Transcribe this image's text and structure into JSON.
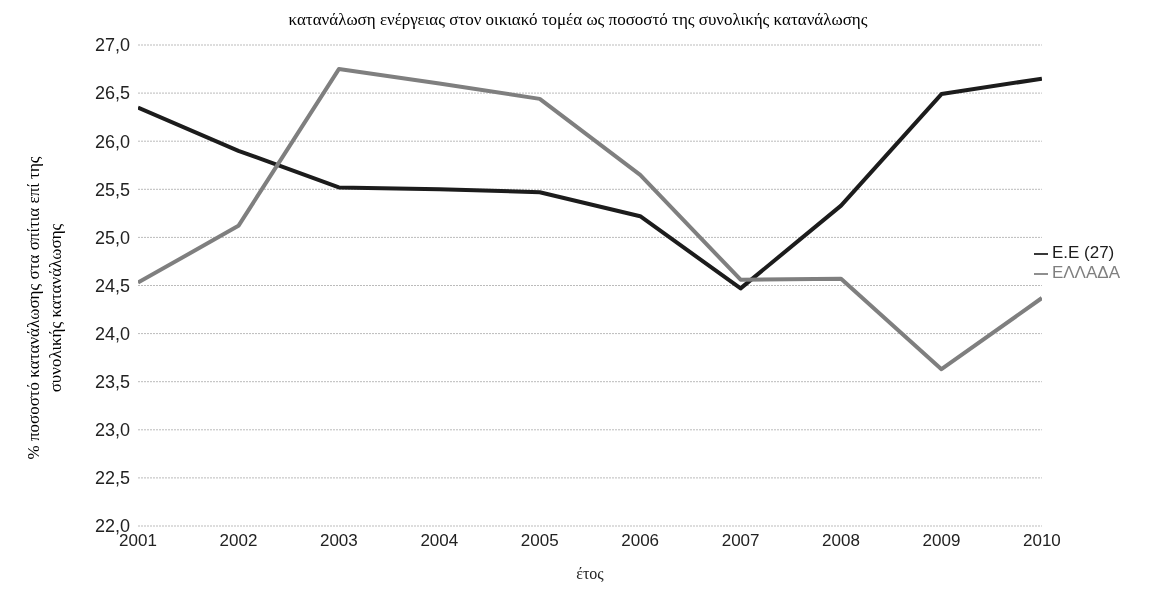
{
  "chart_data": {
    "type": "line",
    "title": "κατανάλωση ενέργειας στον οικιακό τομέα  ως ποσοστό της συνολικής κατανάλωσης",
    "xlabel": "έτος",
    "ylabel": "% ποσοστό κατανάλωσης στα σπίτια επί της συνολικής κατανάλωσης",
    "x": [
      2001,
      2002,
      2003,
      2004,
      2005,
      2006,
      2007,
      2008,
      2009,
      2010
    ],
    "series": [
      {
        "name": "Ε.Ε (27)",
        "color": "#1c1c1c",
        "values": [
          26.35,
          25.9,
          25.52,
          25.5,
          25.47,
          25.22,
          24.47,
          25.33,
          26.49,
          26.65
        ]
      },
      {
        "name": "ΕΛΛΑΔΑ",
        "color": "#7f7f7f",
        "values": [
          24.53,
          25.12,
          26.75,
          26.6,
          26.44,
          25.65,
          24.56,
          24.57,
          23.63,
          24.37
        ]
      }
    ],
    "xlim": [
      2001,
      2010
    ],
    "xticks": [
      2001,
      2002,
      2003,
      2004,
      2005,
      2006,
      2007,
      2008,
      2009,
      2010
    ],
    "ylim": [
      22,
      27
    ],
    "yticks": [
      {
        "value": 22,
        "label": "22,0"
      },
      {
        "value": 22.5,
        "label": "22,5"
      },
      {
        "value": 23,
        "label": "23,0"
      },
      {
        "value": 23.5,
        "label": "23,5"
      },
      {
        "value": 24,
        "label": "24,0"
      },
      {
        "value": 24.5,
        "label": "24,5"
      },
      {
        "value": 25,
        "label": "25,0"
      },
      {
        "value": 25.5,
        "label": "25,5"
      },
      {
        "value": 26,
        "label": "26,0"
      },
      {
        "value": 26.5,
        "label": "26,5"
      },
      {
        "value": 27,
        "label": "27,0"
      }
    ],
    "grid": "y",
    "legend": "right",
    "marker": "none",
    "line_style": "solid"
  }
}
